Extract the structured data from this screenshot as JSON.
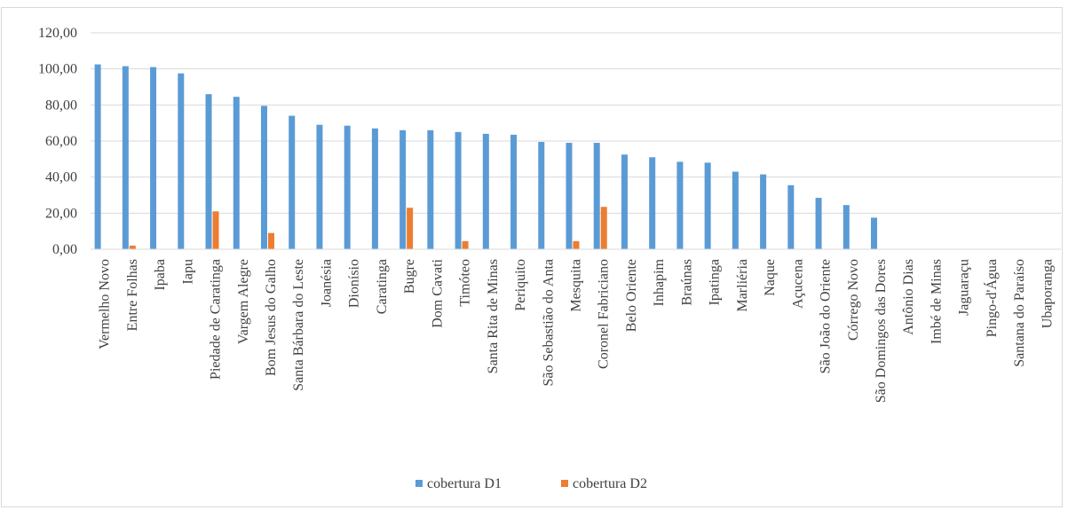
{
  "chart_data": {
    "type": "bar",
    "title": "",
    "xlabel": "",
    "ylabel": "",
    "ylim": [
      0,
      120
    ],
    "yticks": [
      "0,00",
      "20,00",
      "40,00",
      "60,00",
      "80,00",
      "100,00",
      "120,00"
    ],
    "grid": true,
    "legend_position": "bottom",
    "categories": [
      "Vermelho Novo",
      "Entre Folhas",
      "Ipaba",
      "Iapu",
      "Piedade de Caratinga",
      "Vargem Alegre",
      "Bom Jesus do Galho",
      "Santa Bárbara do Leste",
      "Joanésia",
      "Dionísio",
      "Caratinga",
      "Bugre",
      "Dom Cavati",
      "Timóteo",
      "Santa Rita de Minas",
      "Periquito",
      "São Sebastião do Anta",
      "Mesquita",
      "Coronel Fabriciano",
      "Belo Oriente",
      "Inhapim",
      "Braúnas",
      "Ipatinga",
      "Marliéria",
      "Naque",
      "Açucena",
      "São João do Oriente",
      "Córrego Novo",
      "São Domingos das Dores",
      "Antônio Dias",
      "Imbé de Minas",
      "Jaguaraçu",
      "Pingo-d'Água",
      "Santana do Paraíso",
      "Ubaporanga"
    ],
    "series": [
      {
        "name": "cobertura D1",
        "color": "#5b9bd5",
        "values": [
          102.5,
          101.5,
          101.0,
          97.5,
          86.0,
          84.5,
          79.5,
          74.0,
          69.0,
          68.5,
          67.0,
          66.0,
          66.0,
          65.0,
          64.0,
          63.5,
          59.5,
          59.0,
          59.0,
          52.5,
          51.0,
          48.5,
          48.0,
          43.0,
          41.5,
          35.5,
          28.5,
          24.5,
          17.5,
          0,
          0,
          0,
          0,
          0,
          0
        ]
      },
      {
        "name": "cobertura D2",
        "color": "#ed7d31",
        "values": [
          0,
          2.0,
          0,
          0,
          21.0,
          0,
          9.0,
          0,
          0,
          0,
          0,
          23.0,
          0,
          4.5,
          0,
          0,
          0,
          4.5,
          23.5,
          0,
          0,
          0,
          0,
          0,
          0,
          0,
          0,
          0,
          0,
          0,
          0,
          0,
          0,
          0,
          0
        ]
      }
    ]
  }
}
